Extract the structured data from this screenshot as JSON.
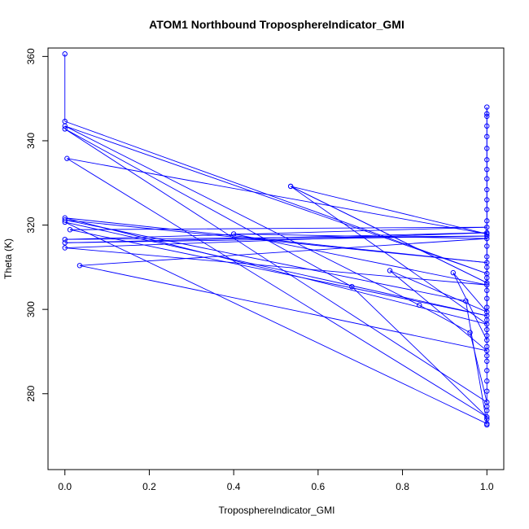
{
  "chart_data": {
    "type": "line",
    "title": "ATOM1 Northbound TroposphereIndicator_GMI",
    "xlabel": "TroposphereIndicator_GMI",
    "ylabel": "Theta (K)",
    "xlim": [
      -0.04,
      1.04
    ],
    "ylim": [
      262,
      362
    ],
    "xticks": [
      0.0,
      0.2,
      0.4,
      0.6,
      0.8,
      1.0
    ],
    "xtick_labels": [
      "0.0",
      "0.2",
      "0.4",
      "0.6",
      "0.8",
      "1.0"
    ],
    "yticks": [
      280,
      300,
      320,
      340,
      360
    ],
    "ytick_labels": [
      "280",
      "300",
      "320",
      "340",
      "360"
    ],
    "series_color": "#0000ff",
    "points": [
      [
        0.0,
        360.6
      ],
      [
        0.0,
        344.6
      ],
      [
        1.0,
        308.5
      ],
      [
        0.0,
        343.5
      ],
      [
        0.84,
        301.0
      ],
      [
        0.96,
        294.5
      ],
      [
        1.0,
        278.0
      ],
      [
        0.0,
        342.8
      ],
      [
        0.68,
        305.4
      ],
      [
        1.0,
        274.5
      ],
      [
        0.005,
        335.8
      ],
      [
        1.0,
        317.9
      ],
      [
        0.535,
        329.2
      ],
      [
        1.0,
        306.3
      ],
      [
        0.535,
        329.2
      ],
      [
        1.0,
        296.5
      ],
      [
        0.0,
        321.7
      ],
      [
        1.0,
        311.1
      ],
      [
        0.0,
        321.2
      ],
      [
        0.95,
        302.0
      ],
      [
        1.0,
        272.9
      ],
      [
        0.0,
        320.7
      ],
      [
        1.0,
        298.5
      ],
      [
        0.012,
        318.9
      ],
      [
        1.0,
        319.5
      ],
      [
        0.0,
        316.6
      ],
      [
        1.0,
        317.4
      ],
      [
        0.0,
        315.8
      ],
      [
        1.0,
        318.2
      ],
      [
        0.0,
        314.6
      ],
      [
        1.0,
        305.8
      ],
      [
        0.4,
        317.9
      ],
      [
        1.0,
        316.8
      ],
      [
        0.035,
        310.4
      ],
      [
        1.0,
        290.2
      ],
      [
        0.77,
        309.2
      ],
      [
        1.0,
        299.4
      ],
      [
        0.92,
        308.7
      ],
      [
        1.0,
        292.7
      ],
      [
        1.0,
        348.0
      ],
      [
        1.0,
        346.4
      ],
      [
        1.0,
        345.8
      ],
      [
        1.0,
        343.5
      ],
      [
        1.0,
        341.0
      ],
      [
        1.0,
        338.2
      ],
      [
        1.0,
        335.5
      ],
      [
        1.0,
        333.2
      ],
      [
        1.0,
        331.0
      ],
      [
        1.0,
        328.4
      ],
      [
        1.0,
        326.0
      ],
      [
        1.0,
        323.7
      ],
      [
        1.0,
        321.0
      ],
      [
        1.0,
        315.0
      ],
      [
        1.0,
        312.5
      ],
      [
        1.0,
        310.0
      ],
      [
        1.0,
        307.5
      ],
      [
        1.0,
        304.5
      ],
      [
        1.0,
        302.6
      ],
      [
        1.0,
        300.5
      ],
      [
        1.0,
        297.5
      ],
      [
        1.0,
        295.2
      ],
      [
        1.0,
        293.8
      ],
      [
        1.0,
        291.2
      ],
      [
        1.0,
        289.0
      ],
      [
        1.0,
        287.7
      ],
      [
        1.0,
        285.5
      ],
      [
        1.0,
        283.0
      ],
      [
        1.0,
        280.6
      ],
      [
        1.0,
        277.0
      ],
      [
        1.0,
        276.0
      ],
      [
        1.0,
        274.0
      ],
      [
        1.0,
        272.6
      ]
    ]
  }
}
